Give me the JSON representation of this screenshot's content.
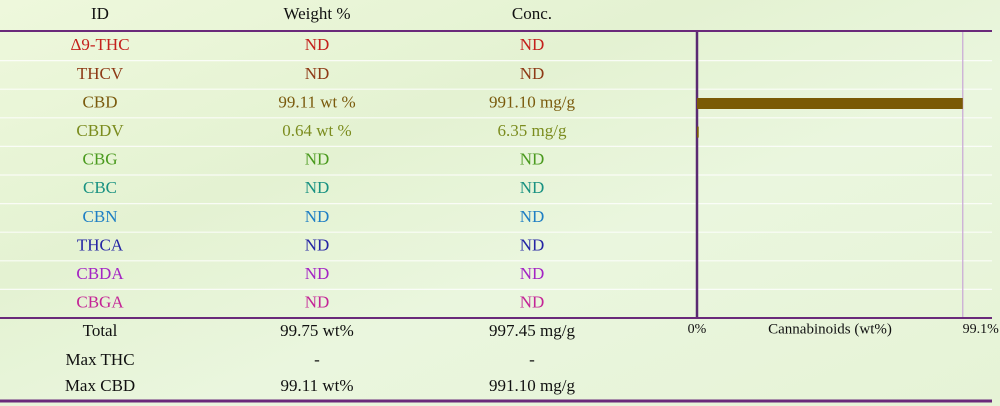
{
  "table": {
    "columns": [
      "ID",
      "Weight %",
      "Conc."
    ],
    "rows": [
      {
        "id": "Δ9-THC",
        "weight": "ND",
        "conc": "ND",
        "color": "#c4201c"
      },
      {
        "id": "THCV",
        "weight": "ND",
        "conc": "ND",
        "color": "#8e3a16"
      },
      {
        "id": "CBD",
        "weight": "99.11 wt %",
        "conc": "991.10 mg/g",
        "color": "#7a5a0c"
      },
      {
        "id": "CBDV",
        "weight": "0.64 wt %",
        "conc": "6.35 mg/g",
        "color": "#7b8c1e"
      },
      {
        "id": "CBG",
        "weight": "ND",
        "conc": "ND",
        "color": "#4a9a1e"
      },
      {
        "id": "CBC",
        "weight": "ND",
        "conc": "ND",
        "color": "#1a9282"
      },
      {
        "id": "CBN",
        "weight": "ND",
        "conc": "ND",
        "color": "#1f7fc4"
      },
      {
        "id": "THCA",
        "weight": "ND",
        "conc": "ND",
        "color": "#2424a4"
      },
      {
        "id": "CBDA",
        "weight": "ND",
        "conc": "ND",
        "color": "#a424c4"
      },
      {
        "id": "CBGA",
        "weight": "ND",
        "conc": "ND",
        "color": "#c42496"
      }
    ],
    "summary": [
      [
        "Total",
        "99.75 wt%",
        "997.45 mg/g"
      ],
      [
        "Max THC",
        "-",
        "-"
      ],
      [
        "Max CBD",
        "99.11 wt%",
        "991.10 mg/g"
      ]
    ]
  },
  "chart_data": {
    "type": "bar",
    "xlabel": "Cannabinoids (wt%)",
    "values": [
      null,
      null,
      99.11,
      0.64,
      null,
      null,
      null,
      null,
      null,
      null
    ],
    "color": "#7a5a05",
    "xlim": [
      0,
      110
    ],
    "xticks": [
      {
        "value": 0,
        "label": "0%"
      },
      {
        "value": 99.1,
        "label": "99.1%"
      }
    ],
    "grid": true
  }
}
